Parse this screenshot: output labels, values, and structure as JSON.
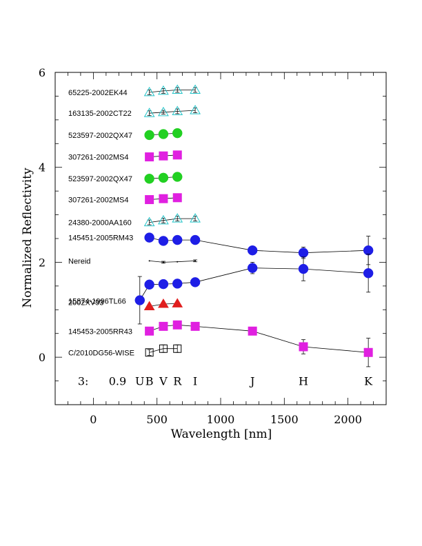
{
  "chart_data": {
    "type": "scatter",
    "title": "",
    "xlabel": "Wavelength [nm]",
    "ylabel": "Normalized Reflectivity",
    "xlim": [
      -300,
      2300
    ],
    "ylim": [
      -1,
      6
    ],
    "xticks": [
      0,
      500,
      1000,
      1500,
      2000
    ],
    "yticks": [
      0,
      2,
      4,
      6
    ],
    "grid": false,
    "legend": "none",
    "band_labels": [
      {
        "text": "3:",
        "x": -80
      },
      {
        "text": "0.9",
        "x": 190
      },
      {
        "text": "U",
        "x": 365
      },
      {
        "text": "B",
        "x": 440
      },
      {
        "text": "V",
        "x": 550
      },
      {
        "text": "R",
        "x": 660
      },
      {
        "text": "I",
        "x": 800
      },
      {
        "text": "J",
        "x": 1250
      },
      {
        "text": "H",
        "x": 1650
      },
      {
        "text": "K",
        "x": 2160
      }
    ],
    "series": [
      {
        "name": "65225-2002EK44",
        "marker": "triangle-open",
        "color": "#22c3c8",
        "x": [
          440,
          550,
          660,
          800
        ],
        "y": [
          5.58,
          5.61,
          5.63,
          5.63
        ],
        "err": [
          0.05,
          0.05,
          0.05,
          0.05
        ]
      },
      {
        "name": "163135-2002CT22",
        "marker": "triangle-open",
        "color": "#22c3c8",
        "x": [
          440,
          550,
          660,
          800
        ],
        "y": [
          5.14,
          5.16,
          5.18,
          5.2
        ],
        "err": [
          0.05,
          0.04,
          0.05,
          0.05
        ]
      },
      {
        "name": "523597-2002QX47",
        "marker": "circle-filled",
        "color": "#22d022",
        "x": [
          440,
          550,
          660
        ],
        "y": [
          4.68,
          4.7,
          4.72
        ],
        "err": [
          0.05,
          0.04,
          0.05
        ]
      },
      {
        "name": "307261-2002MS4",
        "marker": "square-filled",
        "color": "#e020e0",
        "x": [
          440,
          550,
          660
        ],
        "y": [
          4.22,
          4.24,
          4.26
        ],
        "err": [
          0.03,
          0.03,
          0.03
        ]
      },
      {
        "name": "523597-2002QX47",
        "marker": "circle-filled",
        "color": "#22d022",
        "x": [
          440,
          550,
          660
        ],
        "y": [
          3.76,
          3.78,
          3.8
        ],
        "err": [
          0.05,
          0.04,
          0.05
        ]
      },
      {
        "name": "307261-2002MS4",
        "marker": "square-filled",
        "color": "#e020e0",
        "x": [
          440,
          550,
          660
        ],
        "y": [
          3.32,
          3.34,
          3.36
        ],
        "err": [
          0.03,
          0.03,
          0.03
        ]
      },
      {
        "name": "24380-2000AA160",
        "marker": "triangle-open",
        "color": "#22c3c8",
        "x": [
          440,
          550,
          660,
          800
        ],
        "y": [
          2.84,
          2.88,
          2.92,
          2.92
        ],
        "err": [
          0.05,
          0.05,
          0.05,
          0.05
        ]
      },
      {
        "name": "145451-2005RM43",
        "marker": "circle-filled",
        "color": "#1e1ee6",
        "x": [
          440,
          550,
          660,
          800,
          1250,
          1650,
          2160
        ],
        "y": [
          2.52,
          2.45,
          2.47,
          2.47,
          2.25,
          2.2,
          2.25
        ],
        "err": [
          0.02,
          0.02,
          0.02,
          0.02,
          0.05,
          0.12,
          0.3
        ]
      },
      {
        "name": "Nereid",
        "marker": "none",
        "color": "#000000",
        "x": [
          440,
          550,
          660,
          800
        ],
        "y": [
          2.03,
          2.0,
          2.01,
          2.03
        ],
        "err": [
          0.0,
          0.02,
          0.0,
          0.02
        ]
      },
      {
        "name": "15874-1996TL66",
        "marker": "circle-filled",
        "color": "#1e1ee6",
        "x": [
          365,
          440,
          550,
          660,
          800,
          1250,
          1650,
          2160
        ],
        "y": [
          1.2,
          1.53,
          1.54,
          1.55,
          1.58,
          1.88,
          1.86,
          1.77
        ],
        "err": [
          0.5,
          0.04,
          0.03,
          0.03,
          0.03,
          0.12,
          0.25,
          0.4
        ]
      },
      {
        "name": "2002XV93",
        "marker": "triangle-filled",
        "color": "#e01e1e",
        "x": [
          440,
          550,
          660
        ],
        "y": [
          1.07,
          1.12,
          1.13
        ],
        "err": [
          0.03,
          0.03,
          0.03
        ]
      },
      {
        "name": "145453-2005RR43",
        "marker": "square-filled",
        "color": "#e020e0",
        "x": [
          440,
          550,
          660,
          800,
          1250,
          1650,
          2160
        ],
        "y": [
          0.55,
          0.65,
          0.68,
          0.65,
          0.55,
          0.22,
          0.1
        ],
        "err": [
          0.06,
          0.05,
          0.06,
          0.08,
          0.08,
          0.15,
          0.3
        ]
      },
      {
        "name": "C/2010DG56-WISE",
        "marker": "square-open",
        "color": "#000000",
        "x": [
          440,
          550,
          660
        ],
        "y": [
          0.1,
          0.18,
          0.18
        ],
        "err": [
          0.06,
          0.08,
          0.08
        ]
      }
    ]
  }
}
